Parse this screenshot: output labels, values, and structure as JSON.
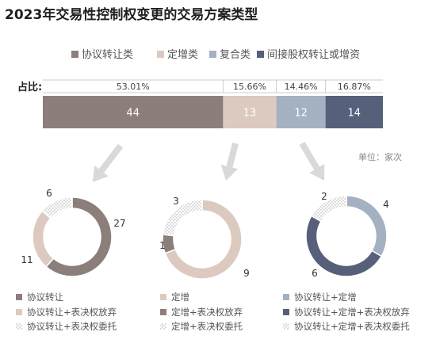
{
  "title": "2023年交易性控制权变更的交易方案类型",
  "share_label": "占比:",
  "unit_label": "单位：家次",
  "colors": {
    "transfer": "#8c7f7b",
    "increase": "#dccac0",
    "composite": "#a4b1c1",
    "indirect": "#56607a",
    "dotted": "#c9c9c9",
    "arrow": "#d9d9d9"
  },
  "chart_data": [
    {
      "type": "bar",
      "orientation": "horizontal-stacked",
      "categories": [
        "协议转让类",
        "定增类",
        "复合类",
        "间接股权转让或增资"
      ],
      "values": [
        44,
        13,
        12,
        14
      ],
      "percent_labels": [
        "53.01%",
        "15.66%",
        "14.46%",
        "16.87%"
      ],
      "legend": [
        "协议转让类",
        "定增类",
        "复合类",
        "间接股权转让或增资"
      ],
      "legend_position": "top"
    },
    {
      "type": "pie",
      "variant": "donut",
      "categories": [
        "协议转让",
        "协议转让+表决权放弃",
        "协议转让+表决权委托"
      ],
      "values": [
        27,
        11,
        6
      ],
      "legend": [
        "协议转让",
        "协议转让+表决权放弃",
        "协议转让+表决权委托"
      ]
    },
    {
      "type": "pie",
      "variant": "donut",
      "categories": [
        "定增",
        "定增+表决权放弃",
        "定增+表决权委托"
      ],
      "values": [
        9,
        1,
        3
      ],
      "legend": [
        "定增",
        "定增+表决权放弃",
        "定增+表决权委托"
      ]
    },
    {
      "type": "pie",
      "variant": "donut",
      "categories": [
        "协议转让+定增",
        "协议转让+定增+表决权放弃",
        "协议转让+定增+表决权委托"
      ],
      "values": [
        4,
        6,
        2
      ],
      "legend": [
        "协议转让+定增",
        "协议转让+定增+表决权放弃",
        "协议转让+定增+表决权委托"
      ]
    }
  ]
}
